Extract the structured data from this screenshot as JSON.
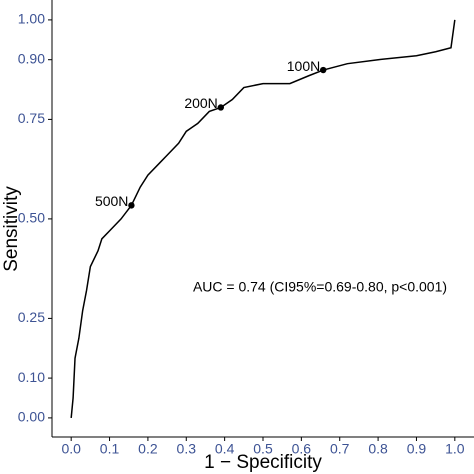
{
  "chart_data": {
    "type": "line",
    "xlabel": "1 − Specificity",
    "ylabel": "Sensitivity",
    "annotation": "AUC = 0.74 (CI95%=0.69-0.80, p<0.001)",
    "xlim": [
      -0.05,
      1.05
    ],
    "ylim": [
      -0.048,
      1.05
    ],
    "xticks": [
      {
        "value": 0,
        "label": "0.0"
      },
      0.1,
      0.2,
      0.3,
      0.4,
      0.5,
      0.6,
      0.7,
      0.8,
      0.9,
      {
        "value": 1,
        "label": "1.0"
      }
    ],
    "yticks": [
      {
        "value": 0,
        "label": "0.00"
      },
      {
        "value": 0.1,
        "label": "0.10"
      },
      0.25,
      {
        "value": 0.5,
        "label": "0.50"
      },
      0.75,
      {
        "value": 0.9,
        "label": "0.90"
      },
      {
        "value": 1,
        "label": "1.00"
      }
    ],
    "color": "#000000",
    "x": [
      0,
      0.005,
      0.01,
      0.02,
      0.03,
      0.04,
      0.05,
      0.07,
      0.08,
      0.1,
      0.13,
      0.157,
      0.18,
      0.2,
      0.23,
      0.25,
      0.28,
      0.3,
      0.33,
      0.36,
      0.39,
      0.42,
      0.45,
      0.5,
      0.57,
      0.62,
      0.657,
      0.72,
      0.8,
      0.9,
      0.95,
      0.99,
      1.0
    ],
    "y": [
      0,
      0.05,
      0.15,
      0.2,
      0.27,
      0.32,
      0.38,
      0.42,
      0.45,
      0.47,
      0.5,
      0.534,
      0.58,
      0.61,
      0.64,
      0.66,
      0.69,
      0.72,
      0.74,
      0.77,
      0.78,
      0.8,
      0.83,
      0.84,
      0.84,
      0.86,
      0.874,
      0.89,
      0.9,
      0.91,
      0.92,
      0.93,
      1.0
    ],
    "markers": [
      {
        "x": 0.157,
        "y": 0.534,
        "label": "500N"
      },
      {
        "x": 0.39,
        "y": 0.78,
        "label": "200N"
      },
      {
        "x": 0.657,
        "y": 0.874,
        "label": "100N"
      }
    ]
  }
}
